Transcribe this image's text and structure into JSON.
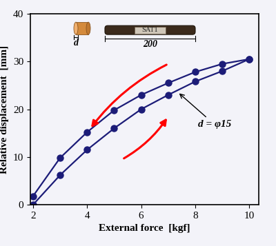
{
  "chart_data": {
    "type": "line",
    "x_label": "External force  [kgf]",
    "y_label": "Relative displacement  [mm]",
    "x": [
      2,
      3,
      4,
      5,
      6,
      7,
      8,
      9,
      10
    ],
    "series": [
      {
        "color": "#1c1c78",
        "marker": "o",
        "line_style": "solid",
        "values": [
          0,
          6.2,
          11.5,
          16,
          20,
          23,
          25.8,
          28,
          30.5
        ]
      },
      {
        "color": "#1c1c78",
        "marker": "o",
        "line_style": "solid",
        "values": [
          1.8,
          9.8,
          15.2,
          19.8,
          23,
          25.5,
          27.8,
          29.5,
          30.5
        ]
      }
    ],
    "xlim": [
      1.9,
      10.35
    ],
    "ylim": [
      0,
      40
    ],
    "xticks": [
      2,
      4,
      6,
      8,
      10
    ],
    "yticks": [
      0,
      10,
      20,
      30,
      40
    ],
    "grid": false,
    "annotations": [
      "d = φ15",
      "d",
      "SAT1",
      "200"
    ]
  }
}
